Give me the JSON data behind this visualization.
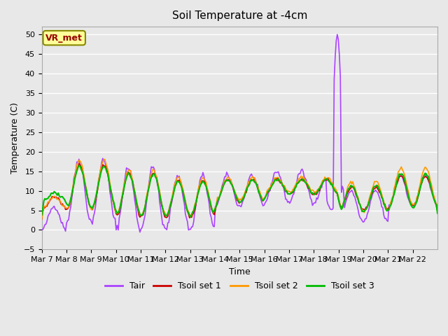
{
  "title": "Soil Temperature at -4cm",
  "xlabel": "Time",
  "ylabel": "Temperature (C)",
  "ylim": [
    -5,
    52
  ],
  "yticks": [
    -5,
    0,
    5,
    10,
    15,
    20,
    25,
    30,
    35,
    40,
    45,
    50
  ],
  "bg_color": "#e8e8e8",
  "plot_bg_color": "#e8e8e8",
  "grid_color": "#ffffff",
  "annotation_text": "VR_met",
  "annotation_bg": "#ffff99",
  "annotation_border": "#888800",
  "annotation_text_color": "#990000",
  "line_colors": {
    "Tair": "#aa44ff",
    "Tsoil1": "#cc0000",
    "Tsoil2": "#ff9900",
    "Tsoil3": "#00bb00"
  },
  "line_widths": {
    "Tair": 1.2,
    "Tsoil1": 1.2,
    "Tsoil2": 1.2,
    "Tsoil3": 1.5
  },
  "legend_labels": [
    "Tair",
    "Tsoil set 1",
    "Tsoil set 2",
    "Tsoil set 3"
  ],
  "x_tick_labels": [
    "Mar 7",
    "Mar 8",
    "Mar 9",
    "Mar 10",
    "Mar 11",
    "Mar 12",
    "Mar 13",
    "Mar 14",
    "Mar 15",
    "Mar 16",
    "Mar 17",
    "Mar 18",
    "Mar 19",
    "Mar 20",
    "Mar 21",
    "Mar 22"
  ],
  "n_points": 384
}
